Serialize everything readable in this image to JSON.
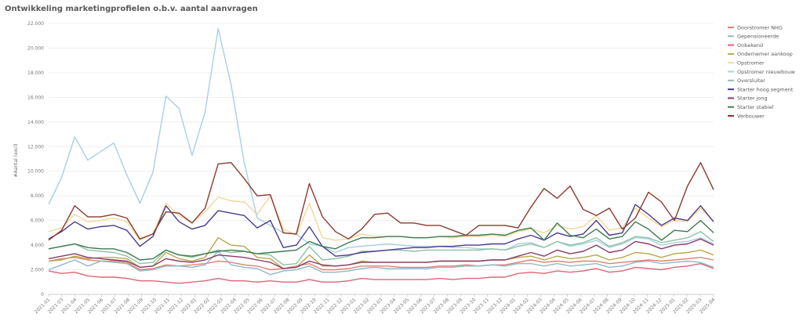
{
  "chart_data": {
    "type": "line",
    "title": "Ontwikkeling marketingprofielen o.b.v. aantal aanvragen",
    "xlabel": "",
    "ylabel": "#Aantal (excl)",
    "ylim": [
      0,
      22000
    ],
    "yticks": [
      "0",
      "2.000",
      "4.000",
      "6.000",
      "8.000",
      "10.000",
      "12.000",
      "14.000",
      "16.000",
      "18.000",
      "20.000",
      "22.000"
    ],
    "grid": true,
    "legend_position": "right",
    "categories": [
      "2021-01",
      "2021-02",
      "2021-03",
      "2021-04",
      "2021-05",
      "2021-06",
      "2021-07",
      "2021-08",
      "2021-09",
      "2021-10",
      "2021-11",
      "2021-12",
      "2022-01",
      "2022-02",
      "2022-03",
      "2022-04",
      "2022-05",
      "2022-06",
      "2022-07",
      "2022-08",
      "2022-09",
      "2022-10",
      "2022-11",
      "2022-12",
      "2023-01",
      "2023-02",
      "2023-03",
      "2023-04",
      "2023-05",
      "2023-06",
      "2023-07",
      "2023-08",
      "2023-09",
      "2023-10",
      "2023-11",
      "2023-12",
      "2024-01",
      "2024-02",
      "2024-03",
      "2024-04",
      "2024-05",
      "2024-06",
      "2024-07",
      "2024-08",
      "2024-09",
      "2024-10",
      "2024-11",
      "2024-12",
      "2025-01",
      "2025-02",
      "2025-03",
      "2025-04"
    ],
    "xtick_labels": [
      "2021-01",
      "2021-03",
      "2021-04",
      "2021-05",
      "2021-06",
      "2021-07",
      "2021-08",
      "2021-09",
      "2021-10",
      "2021-11",
      "2021-12",
      "2022-01",
      "2022-02",
      "2022-03",
      "2022-04",
      "2022-05",
      "2022-06",
      "2022-07",
      "2022-08",
      "2022-09",
      "2022-10",
      "2022-11",
      "2022-12",
      "2023-01",
      "2023-02",
      "2023-03",
      "2023-04",
      "2023-05",
      "2023-06",
      "2023-07",
      "2023-08",
      "2023-09",
      "2023-10",
      "2023-11",
      "2023-12",
      "2024-01",
      "2024-02",
      "2024-03",
      "2024-04",
      "2024-05",
      "2024-06",
      "2024-07",
      "2024-08",
      "2024-09",
      "2024-10",
      "2024-11",
      "2024-12",
      "2025-01",
      "2025-02",
      "2025-03",
      "2025-04"
    ],
    "series": [
      {
        "name": "Doorstromer NHG",
        "color": "#e0826e",
        "values": [
          2700,
          2900,
          3000,
          2800,
          2700,
          2700,
          2600,
          2000,
          2100,
          2400,
          2300,
          2400,
          2500,
          2700,
          2600,
          2400,
          2300,
          2000,
          2100,
          2300,
          2500,
          2000,
          2000,
          2100,
          2300,
          2300,
          2300,
          2200,
          2200,
          2200,
          2300,
          2300,
          2400,
          2300,
          2400,
          2400,
          2600,
          2800,
          2600,
          2700,
          2600,
          2700,
          2700,
          2500,
          2600,
          2700,
          2800,
          2700,
          2800,
          2900,
          3000,
          2800
        ]
      },
      {
        "name": "Gepensioneerde",
        "color": "#8fb8c8",
        "values": [
          2000,
          2400,
          2800,
          2300,
          2700,
          2600,
          2500,
          1900,
          2000,
          2300,
          2300,
          2200,
          2400,
          3500,
          2400,
          2200,
          2100,
          1600,
          1900,
          2000,
          2300,
          1800,
          1800,
          1900,
          2100,
          2200,
          2100,
          2100,
          2100,
          2100,
          2200,
          2200,
          2300,
          2300,
          2400,
          2300,
          2500,
          2500,
          2300,
          2500,
          2300,
          2400,
          2500,
          2200,
          2300,
          2600,
          2700,
          2500,
          2600,
          2700,
          2600,
          2200
        ]
      },
      {
        "name": "Onbekend",
        "color": "#e0647a",
        "values": [
          1900,
          1700,
          1800,
          1500,
          1400,
          1400,
          1300,
          1100,
          1100,
          1000,
          900,
          1000,
          1100,
          1300,
          1100,
          1100,
          1000,
          1100,
          1000,
          1000,
          1200,
          1000,
          1000,
          1100,
          1300,
          1200,
          1200,
          1200,
          1200,
          1200,
          1300,
          1200,
          1300,
          1300,
          1400,
          1400,
          1700,
          1800,
          1700,
          1900,
          1800,
          1900,
          2100,
          1800,
          1900,
          2200,
          2100,
          2000,
          2200,
          2300,
          2500,
          2100
        ]
      },
      {
        "name": "Ondernemer aankoop",
        "color": "#b8a84a",
        "values": [
          2700,
          2800,
          3100,
          2900,
          3000,
          3000,
          2900,
          2200,
          2300,
          3400,
          2900,
          2700,
          3000,
          4600,
          4000,
          3900,
          3000,
          2900,
          2100,
          2200,
          3200,
          2300,
          2300,
          2400,
          2700,
          2600,
          2600,
          2600,
          2600,
          2600,
          2700,
          2700,
          2700,
          2700,
          2800,
          2800,
          3000,
          3100,
          2800,
          3100,
          2900,
          3000,
          3200,
          2800,
          3000,
          3400,
          3300,
          3000,
          3300,
          3400,
          3600,
          3200
        ]
      },
      {
        "name": "Opstromer",
        "color": "#f0d898",
        "values": [
          5100,
          5400,
          6500,
          5900,
          6000,
          6200,
          5900,
          4400,
          4900,
          7400,
          6400,
          5800,
          6700,
          7900,
          7600,
          7500,
          6500,
          8000,
          5300,
          4800,
          7400,
          4600,
          4400,
          4500,
          4900,
          4700,
          4700,
          4700,
          4600,
          4600,
          4700,
          4600,
          4700,
          4700,
          4800,
          4700,
          5100,
          5300,
          5000,
          5600,
          5300,
          5500,
          6400,
          5200,
          5400,
          7000,
          6200,
          5500,
          6000,
          5900,
          7000,
          5900
        ]
      },
      {
        "name": "Opstromer nieuwbouw",
        "color": "#a9cfe1",
        "values": [
          7300,
          9500,
          12800,
          10900,
          11600,
          12300,
          9700,
          7400,
          9900,
          16100,
          15100,
          11300,
          14800,
          21600,
          17000,
          10700,
          6200,
          5600,
          5000,
          4900,
          4100,
          3900,
          3400,
          3800,
          3900,
          4000,
          4100,
          4000,
          3900,
          3900,
          3900,
          3800,
          3800,
          3700,
          3700,
          3600,
          4100,
          4200,
          3800,
          4300,
          3900,
          4100,
          4400,
          3800,
          4100,
          4600,
          4500,
          4000,
          4200,
          4300,
          4600,
          4100
        ]
      },
      {
        "name": "Oversluiter",
        "color": "#8cc2a4",
        "values": [
          3700,
          3900,
          4100,
          3600,
          3500,
          3400,
          3100,
          2500,
          2600,
          3600,
          3200,
          3000,
          3300,
          3600,
          3400,
          3500,
          3300,
          3200,
          2400,
          2500,
          3900,
          2800,
          2900,
          3100,
          3500,
          3500,
          3600,
          3600,
          3500,
          3600,
          3600,
          3600,
          3600,
          3600,
          3700,
          3600,
          3900,
          4100,
          3800,
          4300,
          4000,
          4200,
          4600,
          3900,
          4200,
          4700,
          4600,
          4200,
          4400,
          4600,
          5100,
          4300
        ]
      },
      {
        "name": "Starter hoog segment",
        "color": "#4b3a8e",
        "values": [
          4500,
          5100,
          5900,
          5300,
          5500,
          5600,
          5200,
          3900,
          4700,
          7200,
          5900,
          5300,
          5600,
          6800,
          6600,
          6400,
          5400,
          6000,
          3800,
          4000,
          5500,
          3900,
          3100,
          3200,
          3400,
          3500,
          3600,
          3700,
          3800,
          3800,
          3900,
          3900,
          4000,
          4000,
          4100,
          4100,
          4500,
          4800,
          4400,
          5000,
          4700,
          4900,
          6000,
          4800,
          5000,
          7300,
          6500,
          5600,
          6200,
          6000,
          7200,
          5900
        ]
      },
      {
        "name": "Starter jong",
        "color": "#8c3a6a",
        "values": [
          2900,
          3100,
          3300,
          3000,
          2900,
          2800,
          2700,
          2200,
          2300,
          2900,
          2700,
          2600,
          2800,
          3200,
          3100,
          3000,
          2800,
          2600,
          2100,
          2200,
          2700,
          2400,
          2300,
          2400,
          2600,
          2600,
          2600,
          2600,
          2600,
          2600,
          2700,
          2700,
          2700,
          2700,
          2800,
          2800,
          3100,
          3400,
          3100,
          3600,
          3300,
          3500,
          4000,
          3400,
          3600,
          4300,
          4100,
          3700,
          4000,
          4100,
          4500,
          4000
        ]
      },
      {
        "name": "Starter stabiel",
        "color": "#3c7a52",
        "values": [
          3700,
          3900,
          4100,
          3800,
          3700,
          3700,
          3400,
          2800,
          2900,
          3600,
          3200,
          3100,
          3300,
          3500,
          3600,
          3500,
          3300,
          3400,
          3500,
          3600,
          4300,
          3900,
          3700,
          4200,
          4600,
          4600,
          4700,
          4700,
          4600,
          4600,
          4700,
          4700,
          4800,
          4800,
          4900,
          4800,
          5200,
          5400,
          4400,
          5800,
          4800,
          4600,
          5300,
          4500,
          4700,
          5900,
          5300,
          4400,
          5200,
          5100,
          6000,
          5000
        ]
      },
      {
        "name": "Verbouwer",
        "color": "#8b3a2e",
        "values": [
          4400,
          5200,
          7200,
          6300,
          6300,
          6500,
          6200,
          4500,
          4900,
          6700,
          6600,
          5800,
          7000,
          10600,
          10700,
          9400,
          8000,
          8100,
          5000,
          4900,
          9000,
          6300,
          5100,
          4500,
          5300,
          6500,
          6600,
          5800,
          5800,
          5600,
          5600,
          5200,
          4800,
          5600,
          5600,
          5600,
          5400,
          7100,
          8600,
          7800,
          8800,
          6900,
          6400,
          7000,
          5300,
          6200,
          8300,
          7500,
          6000,
          8800,
          10700,
          8500
        ]
      }
    ]
  }
}
